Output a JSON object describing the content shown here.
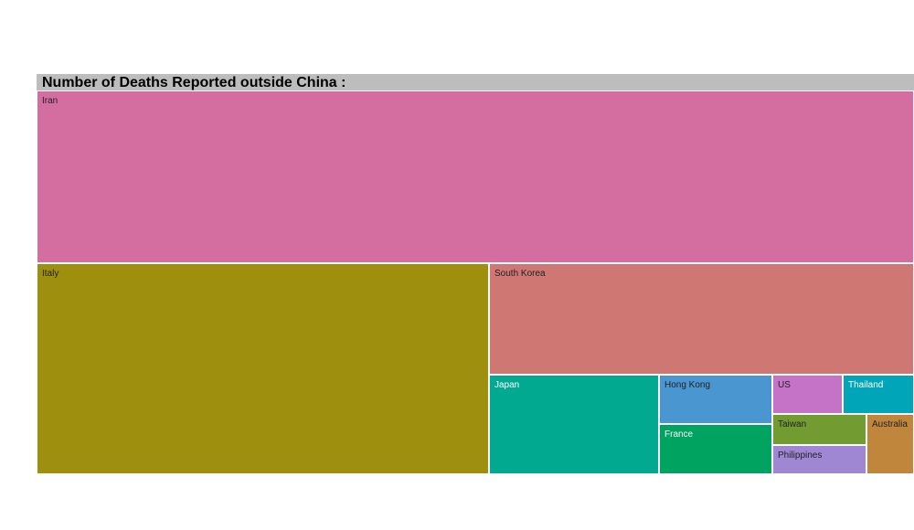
{
  "chart_data": {
    "type": "treemap",
    "title": "Number of Deaths Reported outside China :",
    "items": [
      {
        "name": "Iran",
        "color": "#d46ea0",
        "text_color": "#222222"
      },
      {
        "name": "Italy",
        "color": "#9e900e",
        "text_color": "#222222"
      },
      {
        "name": "South Korea",
        "color": "#cf7772",
        "text_color": "#222222"
      },
      {
        "name": "Japan",
        "color": "#00a990",
        "text_color": "#ffffff"
      },
      {
        "name": "Hong Kong",
        "color": "#4a96d0",
        "text_color": "#222222"
      },
      {
        "name": "France",
        "color": "#00a35f",
        "text_color": "#ffffff"
      },
      {
        "name": "US",
        "color": "#c473c6",
        "text_color": "#222222"
      },
      {
        "name": "Thailand",
        "color": "#00a6b8",
        "text_color": "#ffffff"
      },
      {
        "name": "Taiwan",
        "color": "#729c31",
        "text_color": "#222222"
      },
      {
        "name": "Philippines",
        "color": "#9f87d4",
        "text_color": "#222222"
      },
      {
        "name": "Australia",
        "color": "#c0873c",
        "text_color": "#222222"
      }
    ]
  }
}
